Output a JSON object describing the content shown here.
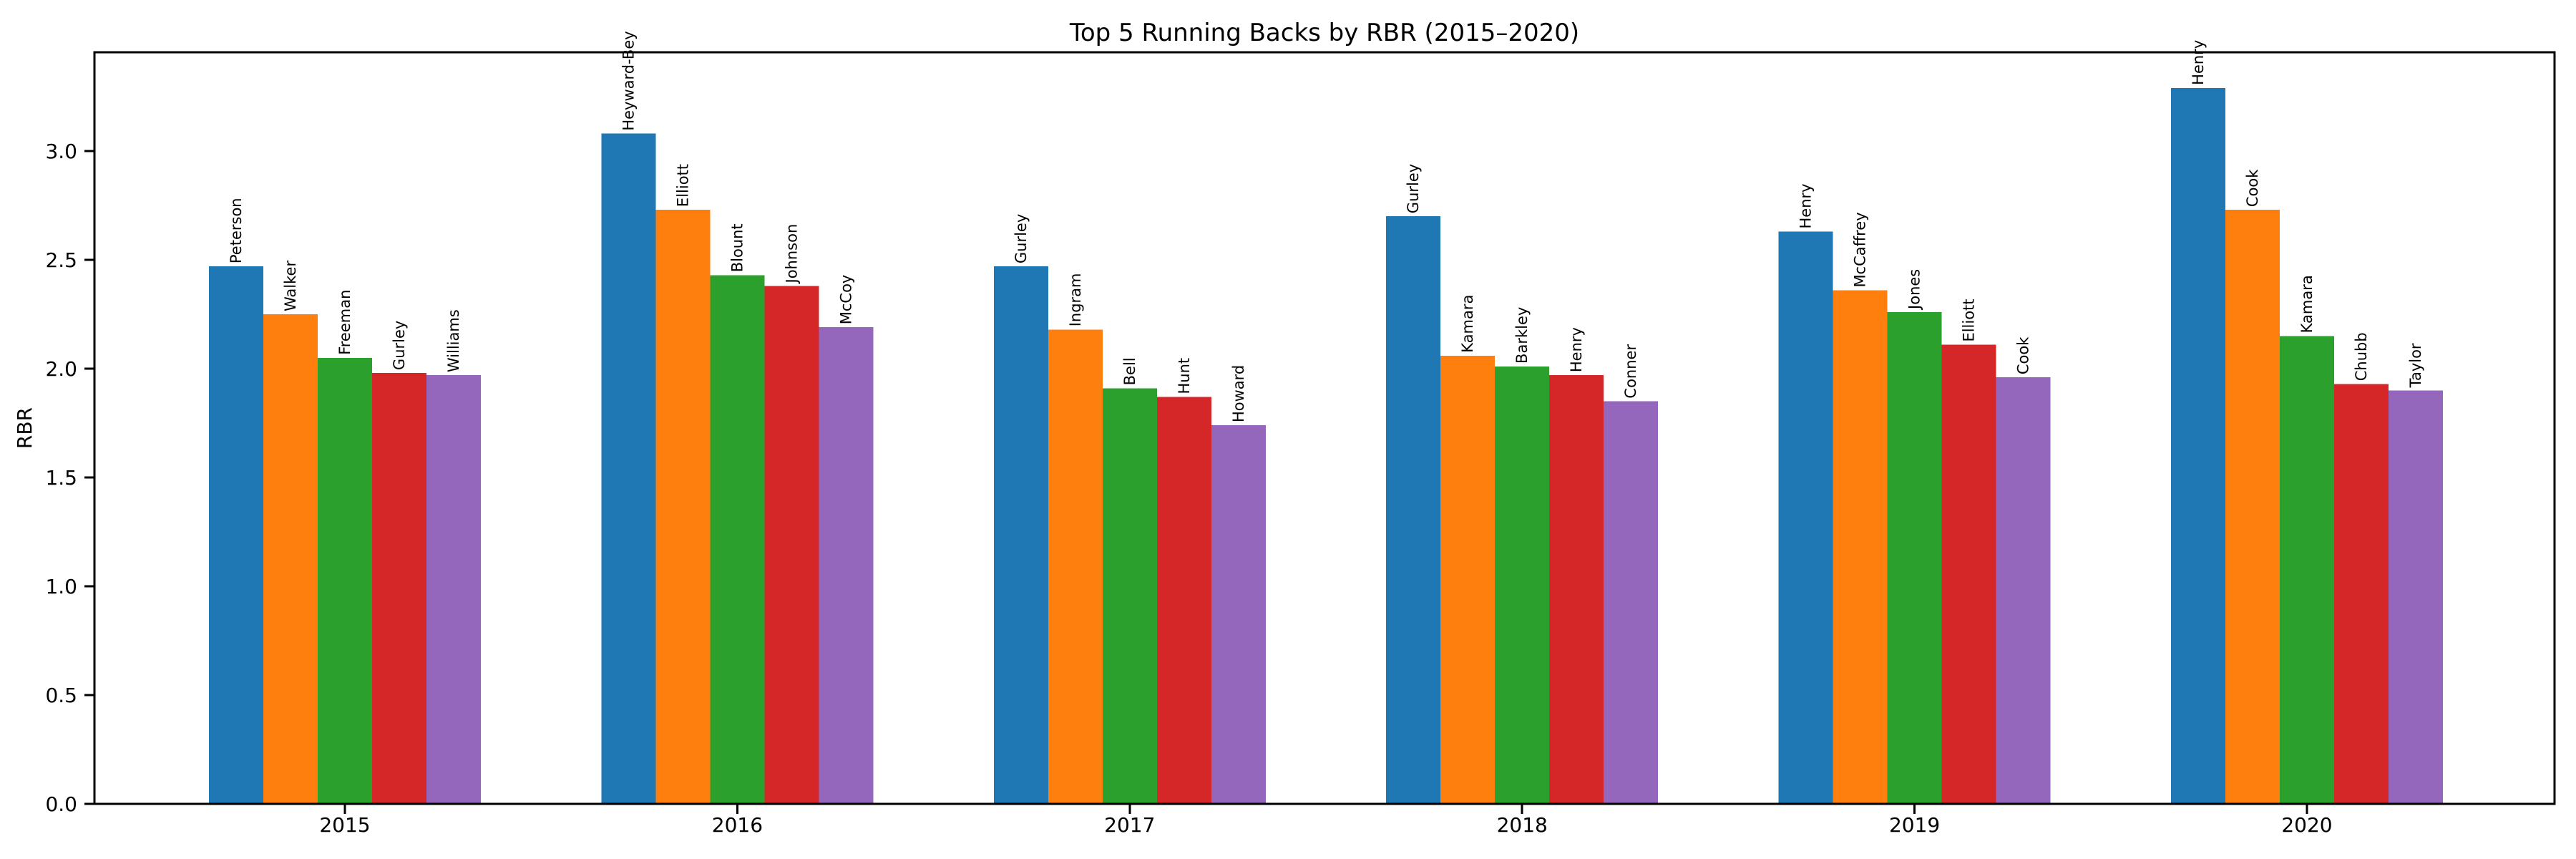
{
  "figure": {
    "background": "#ffffff",
    "axis_color": "#000000"
  },
  "chart_data": {
    "type": "bar",
    "title": "Top 5 Running Backs by RBR (2015–2020)",
    "xlabel": "",
    "ylabel": "RBR",
    "legend": "none",
    "grid": false,
    "categories": [
      "2015",
      "2016",
      "2017",
      "2018",
      "2019",
      "2020"
    ],
    "yticks": [
      0.0,
      0.5,
      1.0,
      1.5,
      2.0,
      2.5,
      3.0
    ],
    "ylim": [
      0,
      3.45
    ],
    "bar_rank_colors": [
      "#1f77b4",
      "#ff7f0e",
      "#2ca02c",
      "#d62728",
      "#9467bd"
    ],
    "groups": [
      {
        "year": "2015",
        "bars": [
          {
            "player": "Peterson",
            "value": 2.47
          },
          {
            "player": "Walker",
            "value": 2.25
          },
          {
            "player": "Freeman",
            "value": 2.05
          },
          {
            "player": "Gurley",
            "value": 1.98
          },
          {
            "player": "Williams",
            "value": 1.97
          }
        ]
      },
      {
        "year": "2016",
        "bars": [
          {
            "player": "Heyward-Bey",
            "value": 3.08
          },
          {
            "player": "Elliott",
            "value": 2.73
          },
          {
            "player": "Blount",
            "value": 2.43
          },
          {
            "player": "Johnson",
            "value": 2.38
          },
          {
            "player": "McCoy",
            "value": 2.19
          }
        ]
      },
      {
        "year": "2017",
        "bars": [
          {
            "player": "Gurley",
            "value": 2.47
          },
          {
            "player": "Ingram",
            "value": 2.18
          },
          {
            "player": "Bell",
            "value": 1.91
          },
          {
            "player": "Hunt",
            "value": 1.87
          },
          {
            "player": "Howard",
            "value": 1.74
          }
        ]
      },
      {
        "year": "2018",
        "bars": [
          {
            "player": "Gurley",
            "value": 2.7
          },
          {
            "player": "Kamara",
            "value": 2.06
          },
          {
            "player": "Barkley",
            "value": 2.01
          },
          {
            "player": "Henry",
            "value": 1.97
          },
          {
            "player": "Conner",
            "value": 1.85
          }
        ]
      },
      {
        "year": "2019",
        "bars": [
          {
            "player": "Henry",
            "value": 2.63
          },
          {
            "player": "McCaffrey",
            "value": 2.36
          },
          {
            "player": "Jones",
            "value": 2.26
          },
          {
            "player": "Elliott",
            "value": 2.11
          },
          {
            "player": "Cook",
            "value": 1.96
          }
        ]
      },
      {
        "year": "2020",
        "bars": [
          {
            "player": "Henry",
            "value": 3.29
          },
          {
            "player": "Cook",
            "value": 2.73
          },
          {
            "player": "Kamara",
            "value": 2.15
          },
          {
            "player": "Chubb",
            "value": 1.93
          },
          {
            "player": "Taylor",
            "value": 1.9
          }
        ]
      }
    ]
  }
}
